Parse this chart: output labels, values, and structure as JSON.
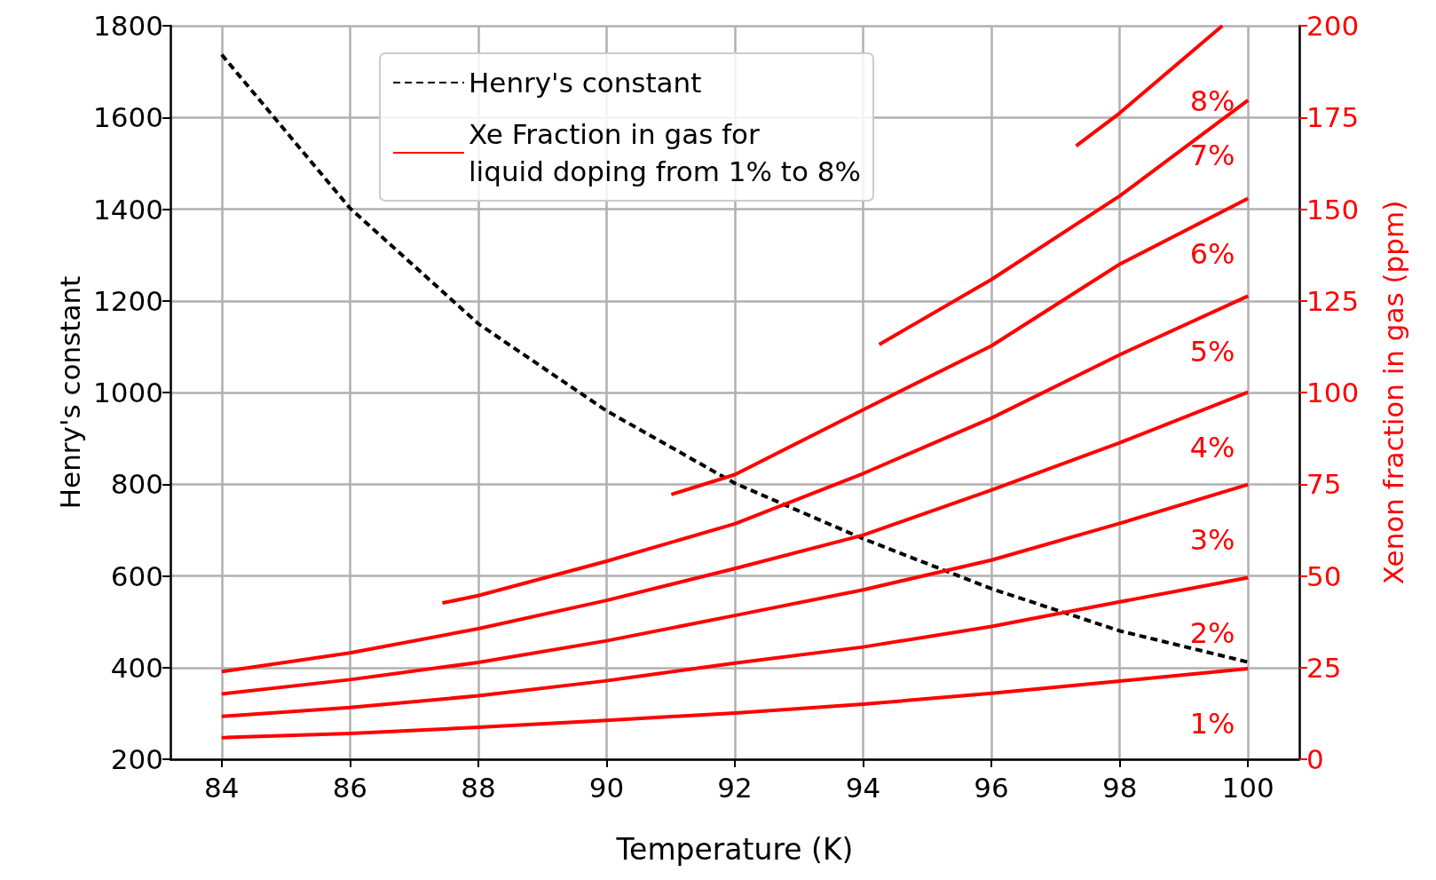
{
  "chart_data": {
    "type": "line",
    "xlabel": "Temperature (K)",
    "ylabel": "Henry's constant",
    "y2label": "Xenon fraction in gas (ppm)",
    "xlim": [
      83.2,
      100.8
    ],
    "xticks": [
      84,
      86,
      88,
      90,
      92,
      94,
      96,
      98,
      100
    ],
    "ylim": [
      200,
      1800
    ],
    "yticks": [
      200,
      400,
      600,
      800,
      1000,
      1200,
      1400,
      1600,
      1800
    ],
    "y2lim": [
      0,
      200
    ],
    "y2ticks": [
      0,
      25,
      50,
      75,
      100,
      125,
      150,
      175,
      200
    ],
    "grid": true,
    "legend": "top",
    "marker": "none",
    "series": [
      {
        "name": "Henry's constant",
        "color": "#000000",
        "line_style": "dashed",
        "x": [
          84,
          86,
          88,
          90,
          92,
          94,
          96,
          98,
          100
        ],
        "values": [
          1737,
          1402,
          1150,
          960,
          802,
          681,
          572,
          480,
          412
        ]
      },
      {
        "name": "Xe Fraction in gas for\nliquid doping from 1% to 8%",
        "color": "#ff0000",
        "axis": "y2",
        "line_style": "solid",
        "x": [
          84,
          86,
          88,
          90,
          92,
          94,
          96,
          98,
          100
        ],
        "values": [
          5.9,
          7.0,
          8.7,
          10.6,
          12.6,
          15.0,
          18.0,
          21.3,
          24.7
        ]
      },
      {
        "color": "#ff0000",
        "axis": "y2",
        "line_style": "solid",
        "x": [
          84,
          86,
          88,
          90,
          92,
          94,
          96,
          98,
          100
        ],
        "values": [
          11.7,
          14.1,
          17.3,
          21.4,
          26.2,
          30.6,
          36.2,
          42.9,
          49.5
        ]
      },
      {
        "color": "#ff0000",
        "axis": "y2",
        "line_style": "solid",
        "x": [
          84,
          86,
          88,
          90,
          92,
          94,
          96,
          98,
          100
        ],
        "values": [
          17.8,
          21.7,
          26.4,
          32.3,
          39.2,
          46.2,
          54.3,
          64.3,
          74.9
        ]
      },
      {
        "color": "#ff0000",
        "axis": "y2",
        "line_style": "solid",
        "x": [
          84,
          86,
          88,
          90,
          92,
          94,
          96,
          98,
          100
        ],
        "values": [
          23.9,
          29.0,
          35.6,
          43.3,
          52.0,
          61.1,
          73.4,
          86.3,
          100.1
        ]
      },
      {
        "color": "#ff0000",
        "axis": "y2",
        "line_style": "solid",
        "x": [
          87.44,
          88,
          90,
          92,
          94,
          96,
          98,
          100
        ],
        "values": [
          42.6,
          44.6,
          54.0,
          64.2,
          77.9,
          93.0,
          110.3,
          126.3
        ]
      },
      {
        "color": "#ff0000",
        "axis": "y2",
        "line_style": "solid",
        "x": [
          91.01,
          92,
          94,
          96,
          98,
          100
        ],
        "values": [
          72.2,
          77.6,
          95.3,
          112.7,
          135.0,
          152.9
        ]
      },
      {
        "color": "#ff0000",
        "axis": "y2",
        "line_style": "solid",
        "x": [
          94.25,
          96,
          98,
          100
        ],
        "values": [
          113.1,
          130.8,
          153.6,
          179.7
        ]
      },
      {
        "color": "#ff0000",
        "axis": "y2",
        "line_style": "solid",
        "x": [
          97.32,
          98,
          99.6
        ],
        "values": [
          167.2,
          176.2,
          200
        ]
      }
    ],
    "annotations": [
      "1%",
      "2%",
      "3%",
      "4%",
      "5%",
      "6%",
      "7%",
      "8%"
    ]
  }
}
